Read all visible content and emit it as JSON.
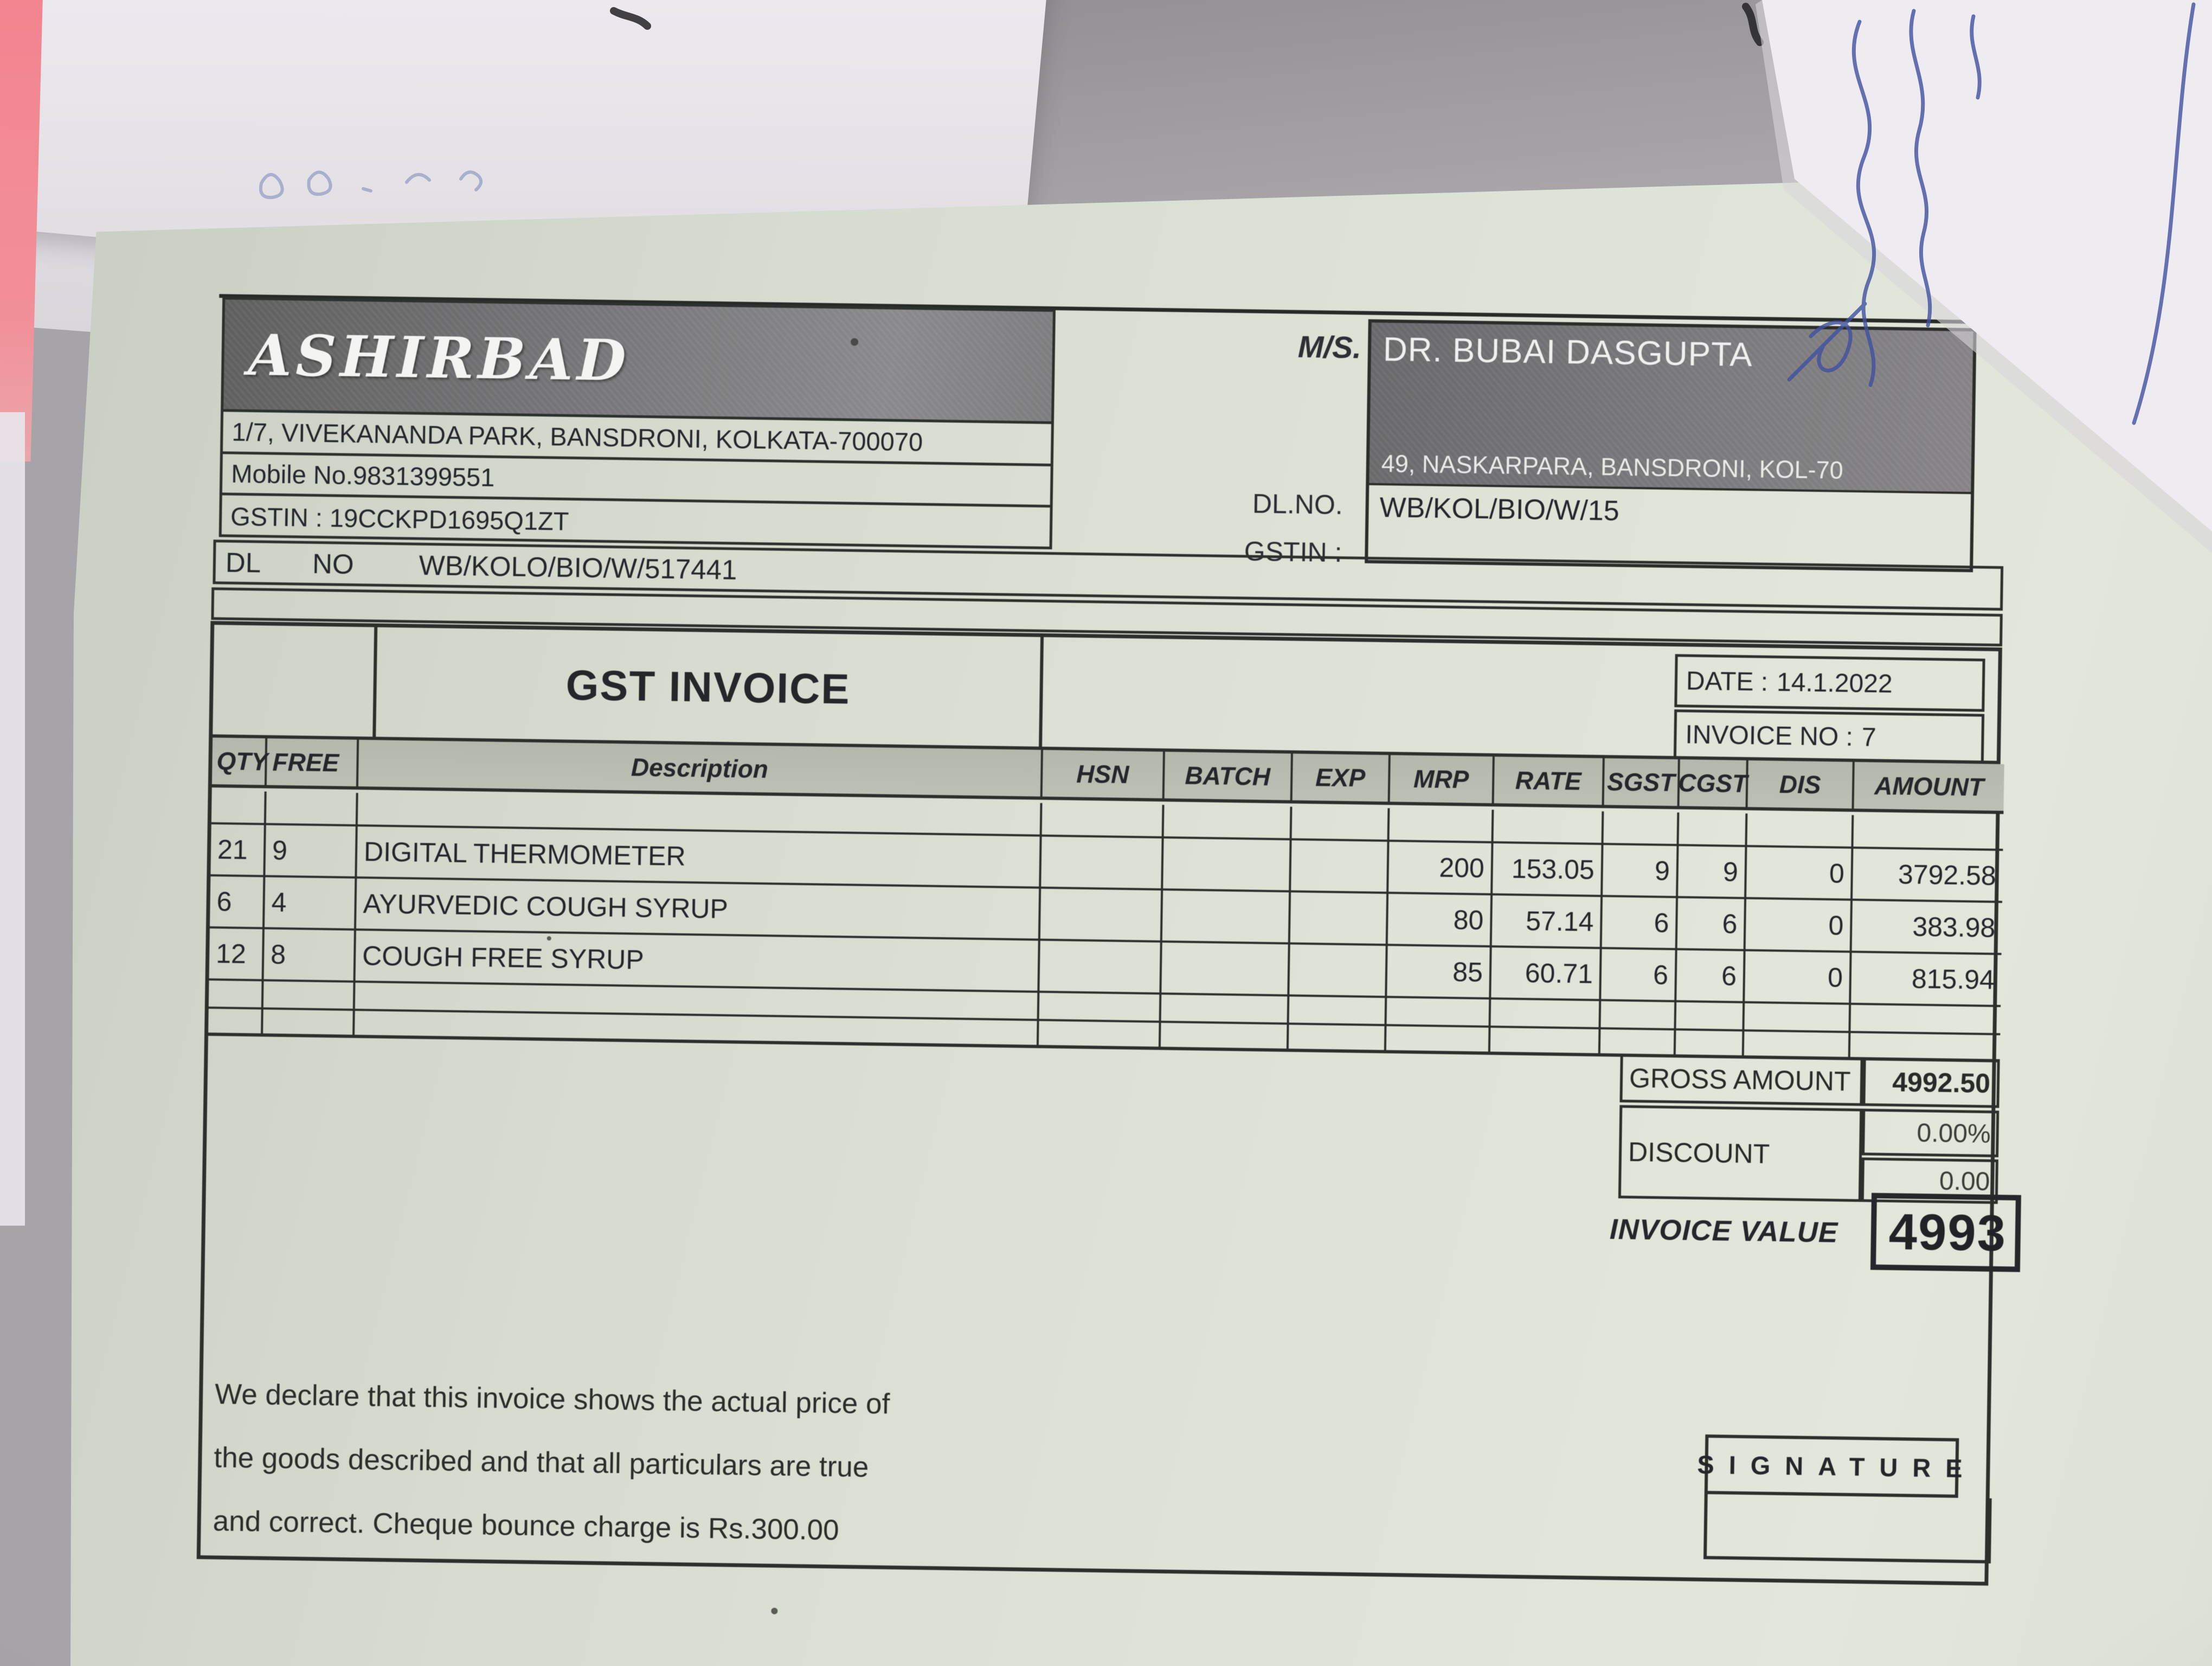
{
  "seller": {
    "name": "ASHIRBAD",
    "address": "1/7, VIVEKANANDA PARK, BANSDRONI, KOLKATA-700070",
    "mobile": "Mobile No.9831399551",
    "gstin": "GSTIN : 19CCKPD1695Q1ZT",
    "dl_label": "DL",
    "dl_no_label": "NO",
    "dl_value": "WB/KOLO/BIO/W/517441"
  },
  "buyer": {
    "ms_label": "M/S.",
    "name": "DR. BUBAI DASGUPTA",
    "address": "49, NASKARPARA, BANSDRONI, KOL-70",
    "dl_label": "DL.NO.",
    "dl_value": "WB/KOL/BIO/W/15",
    "gstin_label": "GSTIN :",
    "gstin_value": ""
  },
  "invoice": {
    "title": "GST INVOICE",
    "date_label": "DATE :",
    "date": "14.1.2022",
    "no_label": "INVOICE NO :",
    "no": "7"
  },
  "table": {
    "columns": [
      "QTY",
      "FREE",
      "Description",
      "HSN",
      "BATCH",
      "EXP",
      "MRP",
      "RATE",
      "SGST",
      "CGST",
      "DIS",
      "AMOUNT"
    ],
    "rows": [
      {
        "qty": "21",
        "free": "9",
        "description": "DIGITAL THERMOMETER",
        "hsn": "",
        "batch": "",
        "exp": "",
        "mrp": "200",
        "rate": "153.05",
        "sgst": "9",
        "cgst": "9",
        "dis": "0",
        "amount": "3792.58"
      },
      {
        "qty": "6",
        "free": "4",
        "description": "AYURVEDIC COUGH SYRUP",
        "hsn": "",
        "batch": "",
        "exp": "",
        "mrp": "80",
        "rate": "57.14",
        "sgst": "6",
        "cgst": "6",
        "dis": "0",
        "amount": "383.98"
      },
      {
        "qty": "12",
        "free": "8",
        "description": "COUGH FREE SYRUP",
        "hsn": "",
        "batch": "",
        "exp": "",
        "mrp": "85",
        "rate": "60.71",
        "sgst": "6",
        "cgst": "6",
        "dis": "0",
        "amount": "815.94"
      }
    ]
  },
  "summary": {
    "gross_label": "GROSS AMOUNT",
    "gross_amount": "4992.50",
    "discount_label": "DISCOUNT",
    "discount_percent": "0.00%",
    "discount_value": "0.00",
    "invoice_value_label": "INVOICE VALUE",
    "invoice_value": "4993"
  },
  "footer": {
    "declaration_lines": [
      "We declare that this invoice shows the actual price of",
      "the goods described and that all particulars are true",
      "and correct. Cheque bounce charge is Rs.300.00"
    ],
    "signature_label": "SIGNATURE"
  }
}
